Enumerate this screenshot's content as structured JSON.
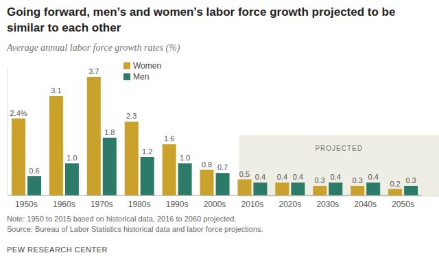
{
  "chart_data": {
    "type": "bar",
    "title": "Going forward, men’s and women’s labor force growth projected to be similar to each other",
    "subtitle": "Average annual labor force growth rates (%)",
    "categories": [
      "1950s",
      "1960s",
      "1970s",
      "1980s",
      "1990s",
      "2000s",
      "2010s",
      "2020s",
      "2030s",
      "2040s",
      "2050s"
    ],
    "series": [
      {
        "name": "Women",
        "color": "#c9a12b",
        "values": [
          2.4,
          3.1,
          3.7,
          2.3,
          1.6,
          0.8,
          0.5,
          0.4,
          0.3,
          0.3,
          0.2
        ],
        "value_labels": [
          "2.4%",
          "3.1",
          "3.7",
          "2.3",
          "1.6",
          "0.8",
          "0.5",
          "0.4",
          "0.3",
          "0.3",
          "0.2"
        ]
      },
      {
        "name": "Men",
        "color": "#2c7a68",
        "values": [
          0.6,
          1.0,
          1.8,
          1.2,
          1.0,
          0.7,
          0.4,
          0.4,
          0.4,
          0.4,
          0.3
        ],
        "value_labels": [
          "0.6",
          "1.0",
          "1.8",
          "1.2",
          "1.0",
          "0.7",
          "0.4",
          "0.4",
          "0.4",
          "0.4",
          "0.3"
        ]
      }
    ],
    "ylim": [
      0,
      4
    ],
    "grid": false,
    "legend": "top-left",
    "data_labels": true,
    "tick_labels": "x",
    "projected": {
      "label": "PROJECTED",
      "from": "2010s",
      "to": "2050s"
    },
    "note": "Note: 1950 to 2015 based on historical data, 2016 to 2060 projected.",
    "source": "Source: Bureau of Labor Statistics historical data and labor force projections.",
    "credit": "PEW RESEARCH CENTER"
  }
}
